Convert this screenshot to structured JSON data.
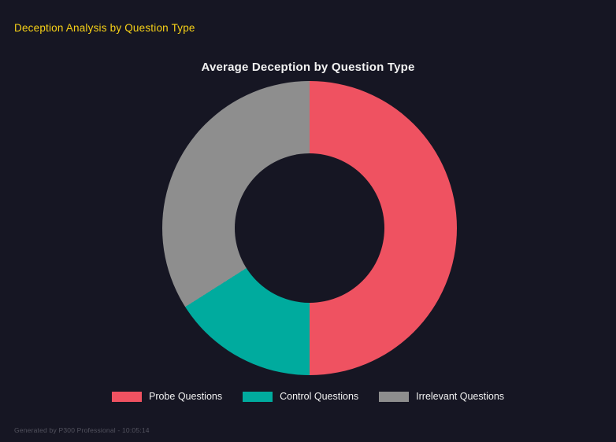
{
  "page": {
    "title": "Deception Analysis by Question Type",
    "footer": "Generated by P300 Professional - 10:05:14"
  },
  "chart_data": {
    "type": "pie",
    "subtype": "donut",
    "title": "Average Deception by Question Type",
    "categories": [
      "Probe Questions",
      "Control Questions",
      "Irrelevant Questions"
    ],
    "values": [
      50,
      16,
      34
    ],
    "colors": [
      "#ef5261",
      "#00ab9e",
      "#8e8e8e"
    ],
    "legend_position": "bottom",
    "start_angle_deg": 0,
    "direction": "clockwise",
    "inner_radius_ratio": 0.51,
    "background": "#161623"
  }
}
